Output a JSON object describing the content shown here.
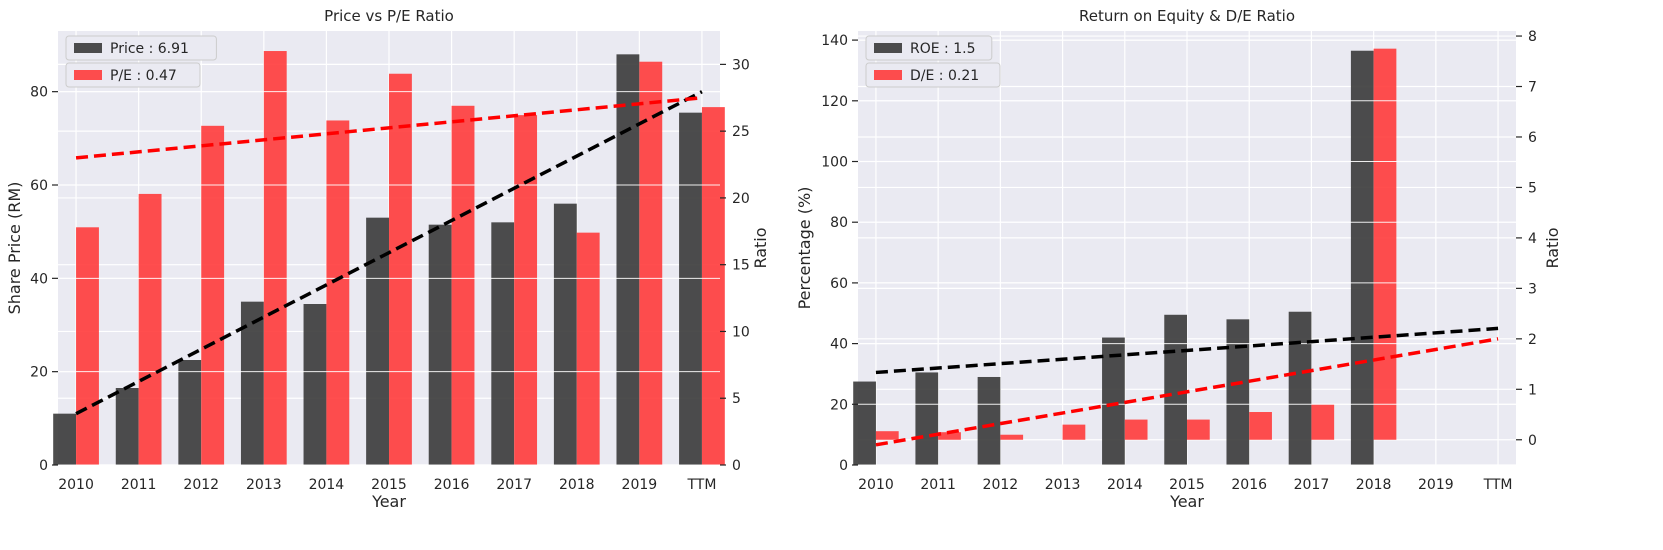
{
  "chart_data": [
    {
      "type": "bar",
      "title": "Price vs P/E Ratio",
      "xlabel": "Year",
      "ylabel": "Share Price (RM)",
      "ylabel_right": "Ratio",
      "categories": [
        "2010",
        "2011",
        "2012",
        "2013",
        "2014",
        "2015",
        "2016",
        "2017",
        "2018",
        "2019",
        "TTM"
      ],
      "ylim": [
        0,
        93
      ],
      "ylim_right": [
        0,
        32.5
      ],
      "yticks": [
        0,
        20,
        40,
        60,
        80
      ],
      "yticks_right": [
        0,
        5,
        10,
        15,
        20,
        25,
        30
      ],
      "grid": true,
      "legend_position": "top-left",
      "series": [
        {
          "name": "Price : 6.91",
          "axis": "left",
          "color": "#3a3a3a",
          "values": [
            11,
            16.5,
            22.5,
            35,
            34.5,
            53,
            51.5,
            52,
            56,
            88,
            75.5
          ]
        },
        {
          "name": "P/E : 0.47",
          "axis": "right",
          "color": "#ff3b3b",
          "values": [
            17.8,
            20.3,
            25.4,
            31,
            25.8,
            29.3,
            26.9,
            26.2,
            17.4,
            30.2,
            26.8
          ]
        }
      ],
      "trendlines": [
        {
          "axis": "left",
          "color": "#000000",
          "from": [
            0,
            11
          ],
          "to": [
            10,
            80
          ]
        },
        {
          "axis": "right",
          "color": "#ff0000",
          "from": [
            0,
            23
          ],
          "to": [
            10,
            27.5
          ]
        }
      ]
    },
    {
      "type": "bar",
      "title": "Return on Equity & D/E Ratio",
      "xlabel": "Year",
      "ylabel": "Percentage (%)",
      "ylabel_right": "Ratio",
      "categories": [
        "2010",
        "2011",
        "2012",
        "2013",
        "2014",
        "2015",
        "2016",
        "2017",
        "2018",
        "2019",
        "TTM"
      ],
      "ylim": [
        0,
        143
      ],
      "ylim_right": [
        -0.5,
        8.1
      ],
      "yticks": [
        0,
        20,
        40,
        60,
        80,
        100,
        120,
        140
      ],
      "yticks_right": [
        0,
        1,
        2,
        3,
        4,
        5,
        6,
        7,
        8
      ],
      "grid": true,
      "legend_position": "top-left",
      "series": [
        {
          "name": "ROE : 1.5",
          "axis": "left",
          "color": "#3a3a3a",
          "values": [
            27.5,
            30.5,
            29,
            null,
            42,
            49.5,
            48,
            50.5,
            136.5,
            null,
            null
          ]
        },
        {
          "name": "D/E : 0.21",
          "axis": "right",
          "color": "#ff3b3b",
          "values": [
            0.17,
            0.15,
            0.1,
            0.3,
            0.4,
            0.4,
            0.55,
            0.7,
            7.75,
            null,
            null
          ]
        }
      ],
      "trendlines": [
        {
          "axis": "left",
          "color": "#000000",
          "from": [
            0,
            30.5
          ],
          "to": [
            10,
            45
          ]
        },
        {
          "axis": "right",
          "color": "#ff0000",
          "from": [
            0,
            -0.1
          ],
          "to": [
            10,
            2
          ]
        }
      ]
    }
  ]
}
